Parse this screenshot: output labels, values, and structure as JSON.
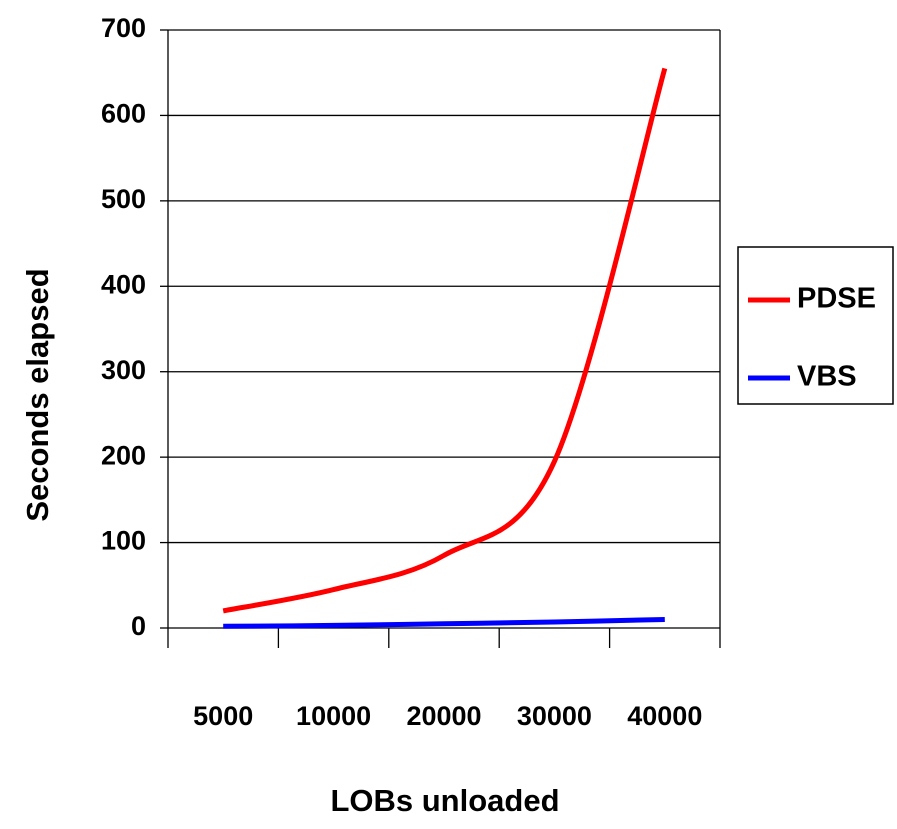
{
  "chart_data": {
    "type": "line",
    "x_label": "LOBs unloaded",
    "y_label": "Seconds elapsed",
    "categories": [
      "5000",
      "10000",
      "20000",
      "30000",
      "40000"
    ],
    "series": [
      {
        "name": "PDSE",
        "color": "#ff0000",
        "values": [
          20,
          45,
          85,
          195,
          655
        ]
      },
      {
        "name": "VBS",
        "color": "#0000ff",
        "values": [
          2,
          3,
          5,
          7,
          10
        ]
      }
    ],
    "ylim": [
      0,
      700
    ],
    "yticks": [
      0,
      100,
      200,
      300,
      400,
      500,
      600,
      700
    ],
    "grid": true,
    "smooth": true,
    "legend": "right"
  }
}
